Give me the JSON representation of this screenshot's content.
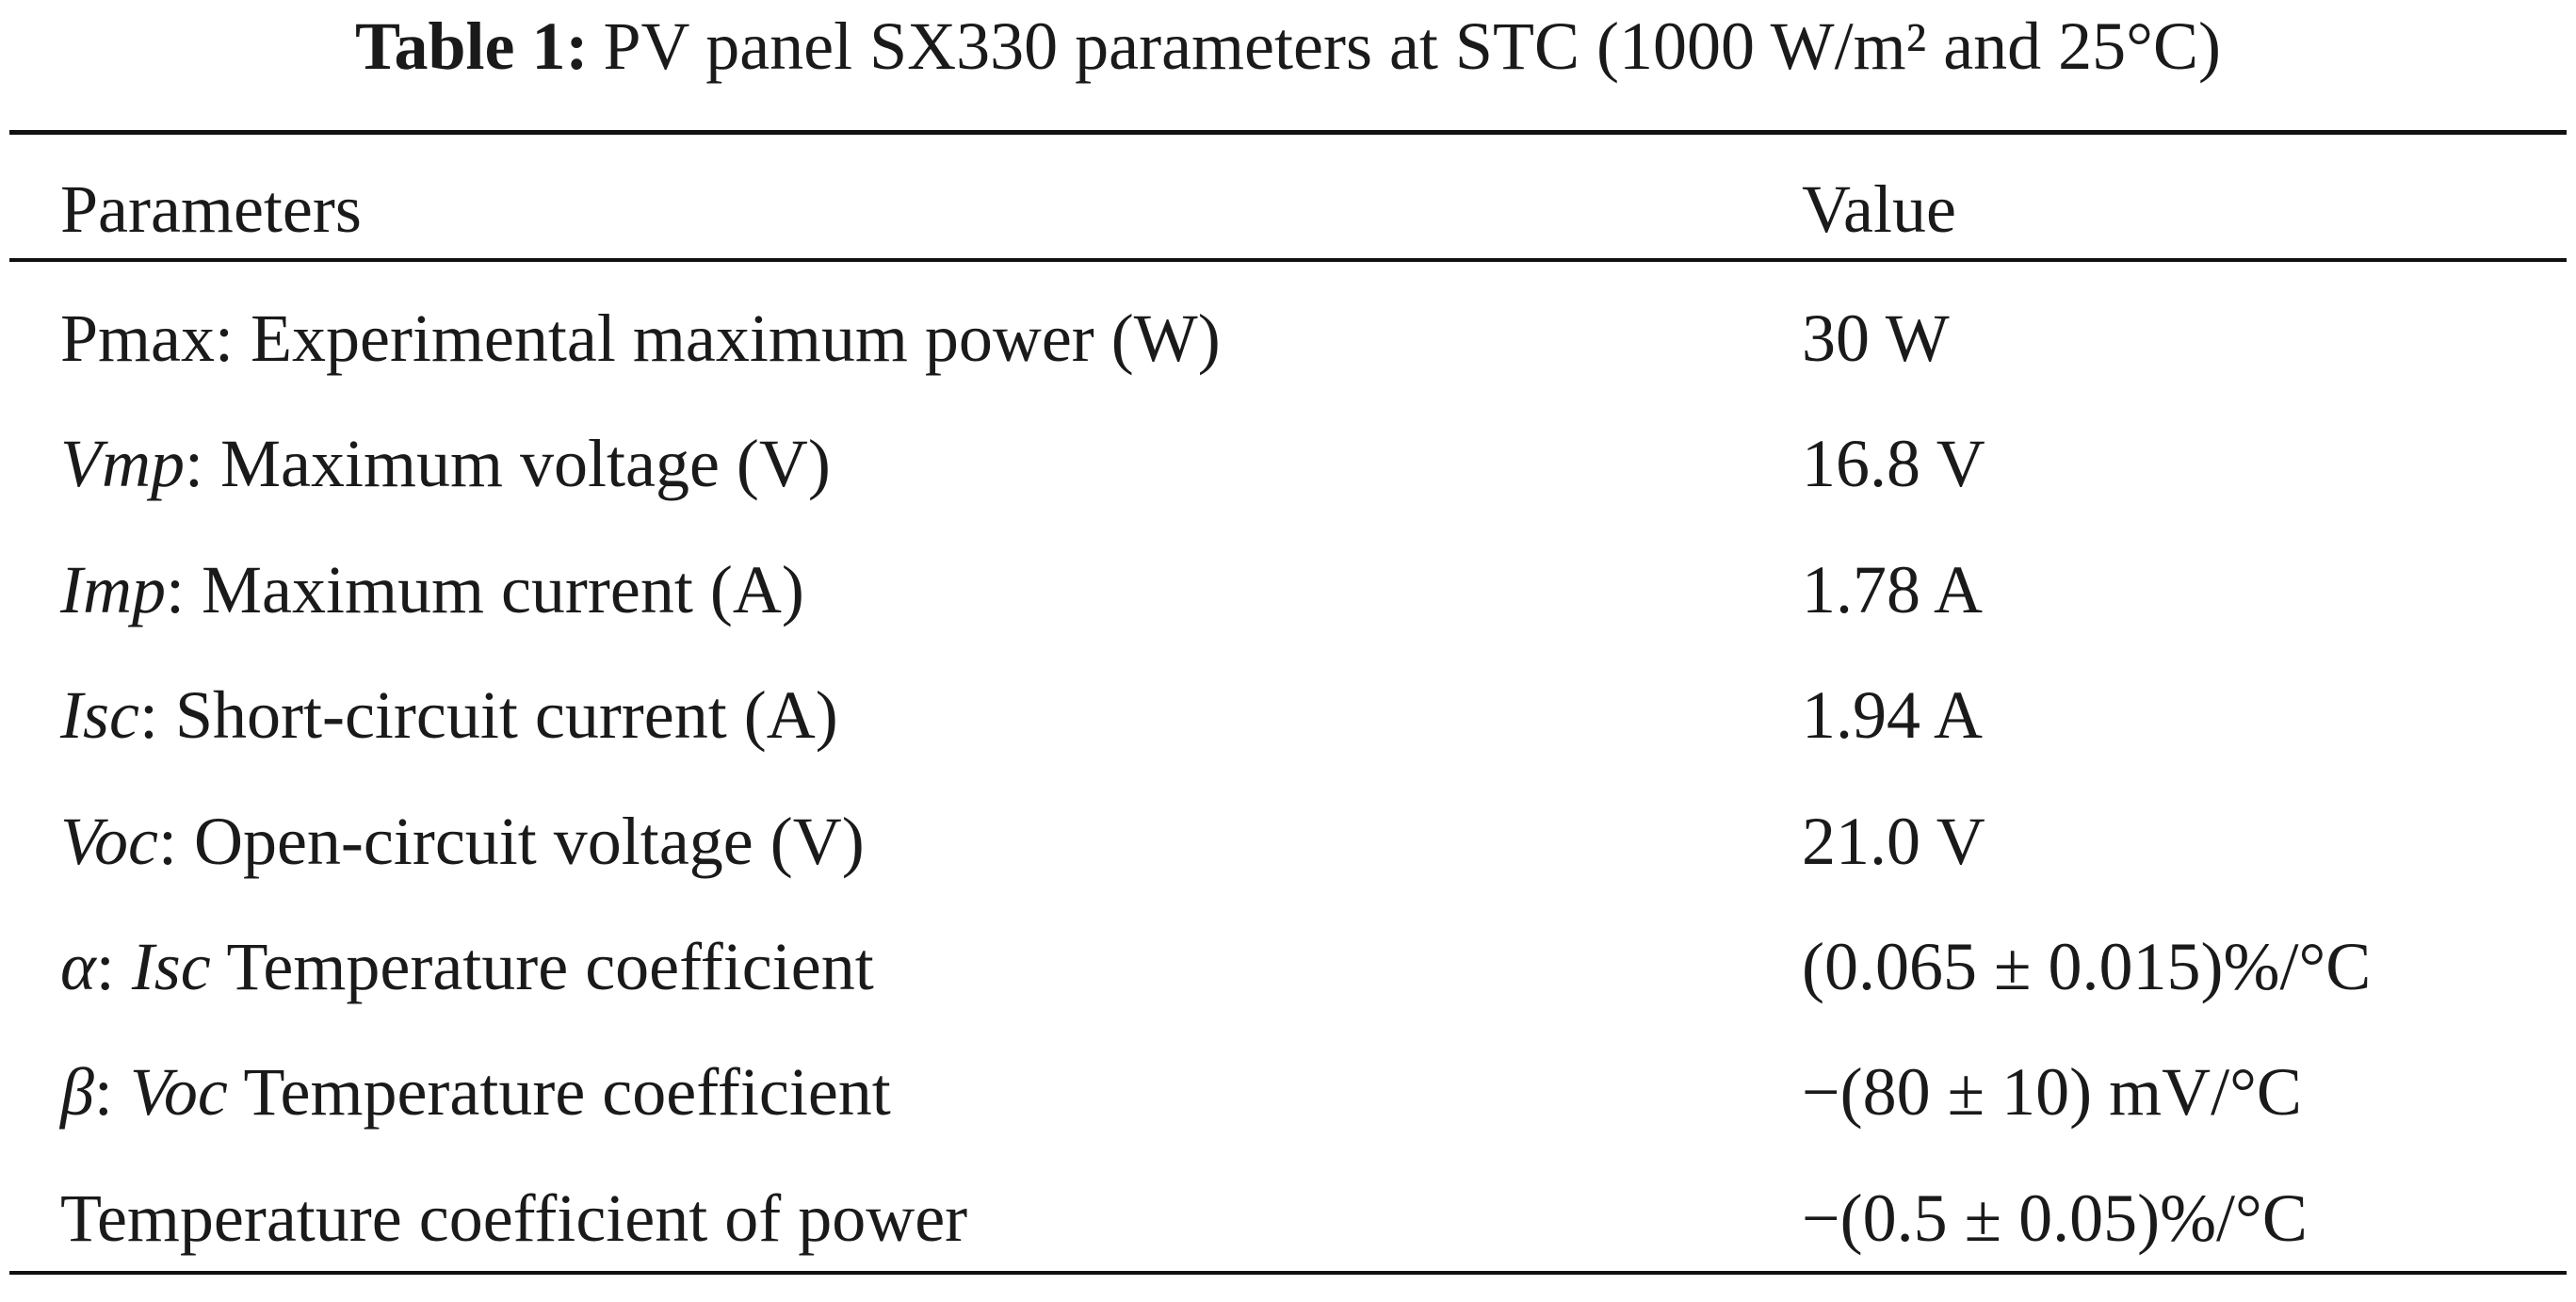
{
  "caption": {
    "label": "Table 1:",
    "text": "PV panel SX330 parameters at STC (1000 W/m² and 25°C)"
  },
  "table": {
    "header": {
      "param": "Parameters",
      "value": "Value"
    },
    "rows": [
      {
        "symbol": "",
        "param": "Pmax: Experimental maximum power (W)",
        "value": "30 W"
      },
      {
        "symbol": "Vmp",
        "param": ": Maximum voltage (V)",
        "value": "16.8 V"
      },
      {
        "symbol": "Imp",
        "param": ": Maximum current (A)",
        "value": "1.78 A"
      },
      {
        "symbol": "Isc",
        "param": ": Short-circuit current (A)",
        "value": "1.94 A"
      },
      {
        "symbol": "Voc",
        "param": ": Open-circuit voltage (V)",
        "value": "21.0 V"
      },
      {
        "symbol": "α",
        "param_pre": ": ",
        "param_sym": "Isc",
        "param": " Temperature coefficient",
        "value": "(0.065 ± 0.015)%/°C"
      },
      {
        "symbol": "β",
        "param_pre": ": ",
        "param_sym": "Voc",
        "param": " Temperature coefficient",
        "value": "−(80 ± 10) mV/°C"
      },
      {
        "symbol": "",
        "param": "Temperature coefficient of power",
        "value": "−(0.5 ± 0.05)%/°C"
      }
    ]
  }
}
